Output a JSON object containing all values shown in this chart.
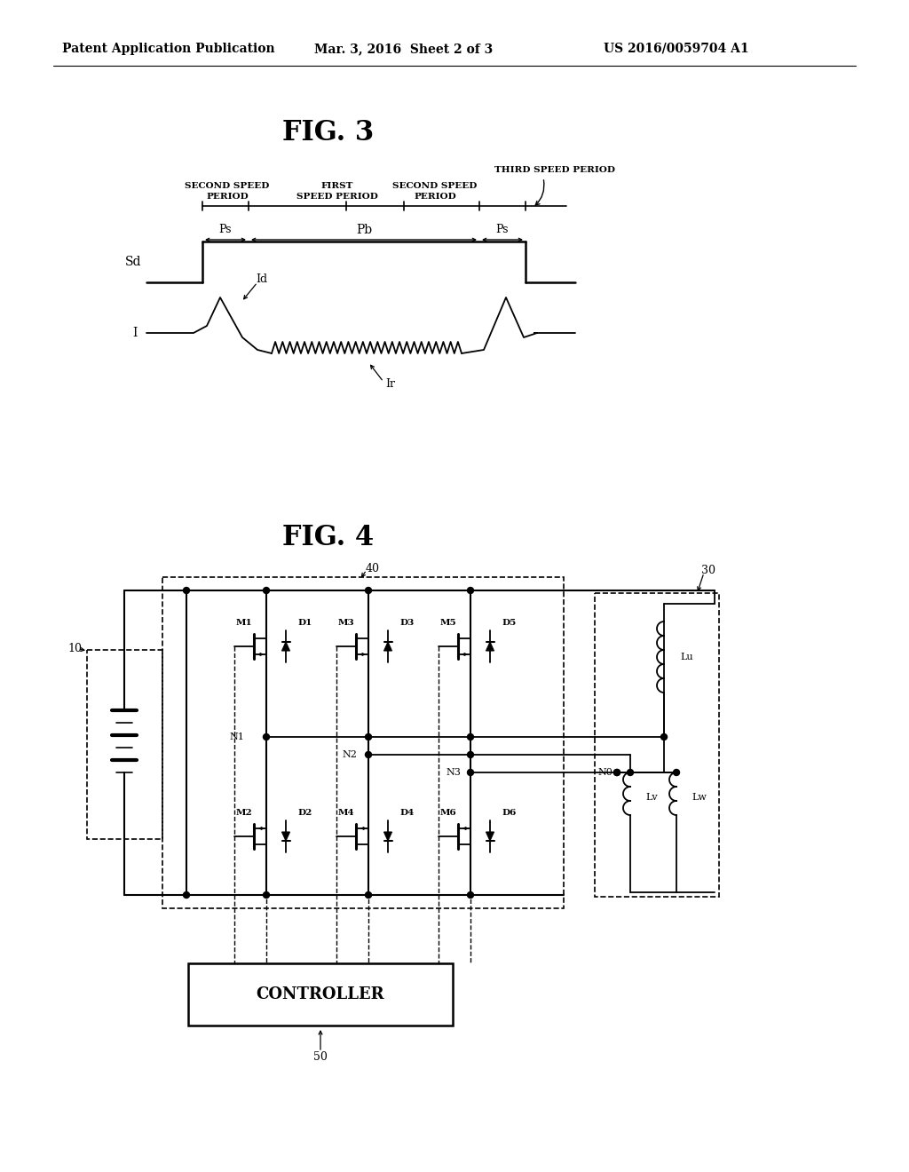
{
  "bg_color": "#ffffff",
  "header_left": "Patent Application Publication",
  "header_mid": "Mar. 3, 2016  Sheet 2 of 3",
  "header_right": "US 2016/0059704 A1",
  "fig3_title": "FIG. 3",
  "fig4_title": "FIG. 4",
  "label_40": "40",
  "label_30": "30",
  "label_10": "10",
  "label_50": "50",
  "label_Sd": "Sd",
  "label_I": "I",
  "label_Id": "Id",
  "label_Ir": "Ir",
  "label_Ps": "Ps",
  "label_Pb": "Pb",
  "label_N0": "N0",
  "label_N1": "N1",
  "label_N2": "N2",
  "label_N3": "N3",
  "label_Lu": "Lu",
  "label_Lv": "Lv",
  "label_Lw": "Lw",
  "label_CONTROLLER": "CONTROLLER",
  "mosfet_top": [
    "M1",
    "M3",
    "M5"
  ],
  "mosfet_bot": [
    "M2",
    "M4",
    "M6"
  ],
  "diode_top": [
    "D1",
    "D3",
    "D5"
  ],
  "diode_bot": [
    "D2",
    "D4",
    "D6"
  ]
}
